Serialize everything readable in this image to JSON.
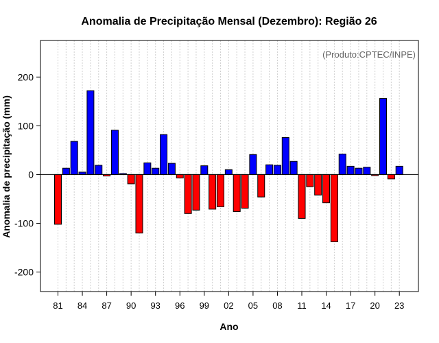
{
  "chart_data": {
    "type": "bar",
    "title": "Anomalia de Precipitação Mensal (Dezembro): Região 26",
    "xlabel": "Ano",
    "ylabel": "Anomalia de precipitação (mm)",
    "annotation": "(Produto:CPTEC/INPE)",
    "years": [
      1981,
      1982,
      1983,
      1984,
      1985,
      1986,
      1987,
      1988,
      1989,
      1990,
      1991,
      1992,
      1993,
      1994,
      1995,
      1996,
      1997,
      1998,
      1999,
      2000,
      2001,
      2002,
      2003,
      2004,
      2005,
      2006,
      2007,
      2008,
      2009,
      2010,
      2011,
      2012,
      2013,
      2014,
      2015,
      2016,
      2017,
      2018,
      2019,
      2020,
      2021,
      2022,
      2023
    ],
    "values": [
      -102,
      13,
      68,
      5,
      172,
      19,
      -3,
      91,
      2,
      -19,
      -120,
      24,
      13,
      82,
      23,
      -7,
      -80,
      -73,
      18,
      -71,
      -66,
      10,
      -76,
      -69,
      41,
      -46,
      20,
      19,
      76,
      27,
      -90,
      -25,
      -42,
      -58,
      -138,
      42,
      17,
      13,
      15,
      -2,
      156,
      -9,
      17
    ],
    "x_tick_labels": [
      "81",
      "84",
      "87",
      "90",
      "93",
      "96",
      "99",
      "02",
      "05",
      "08",
      "11",
      "14",
      "17",
      "20",
      "23"
    ],
    "y_ticks": [
      -200,
      -100,
      0,
      100,
      200
    ],
    "ylim": [
      -240,
      275
    ],
    "positive_color": "#0000ff",
    "negative_color": "#ff0000",
    "grid": "vertical-dotted",
    "annotation_position": "top-right"
  }
}
